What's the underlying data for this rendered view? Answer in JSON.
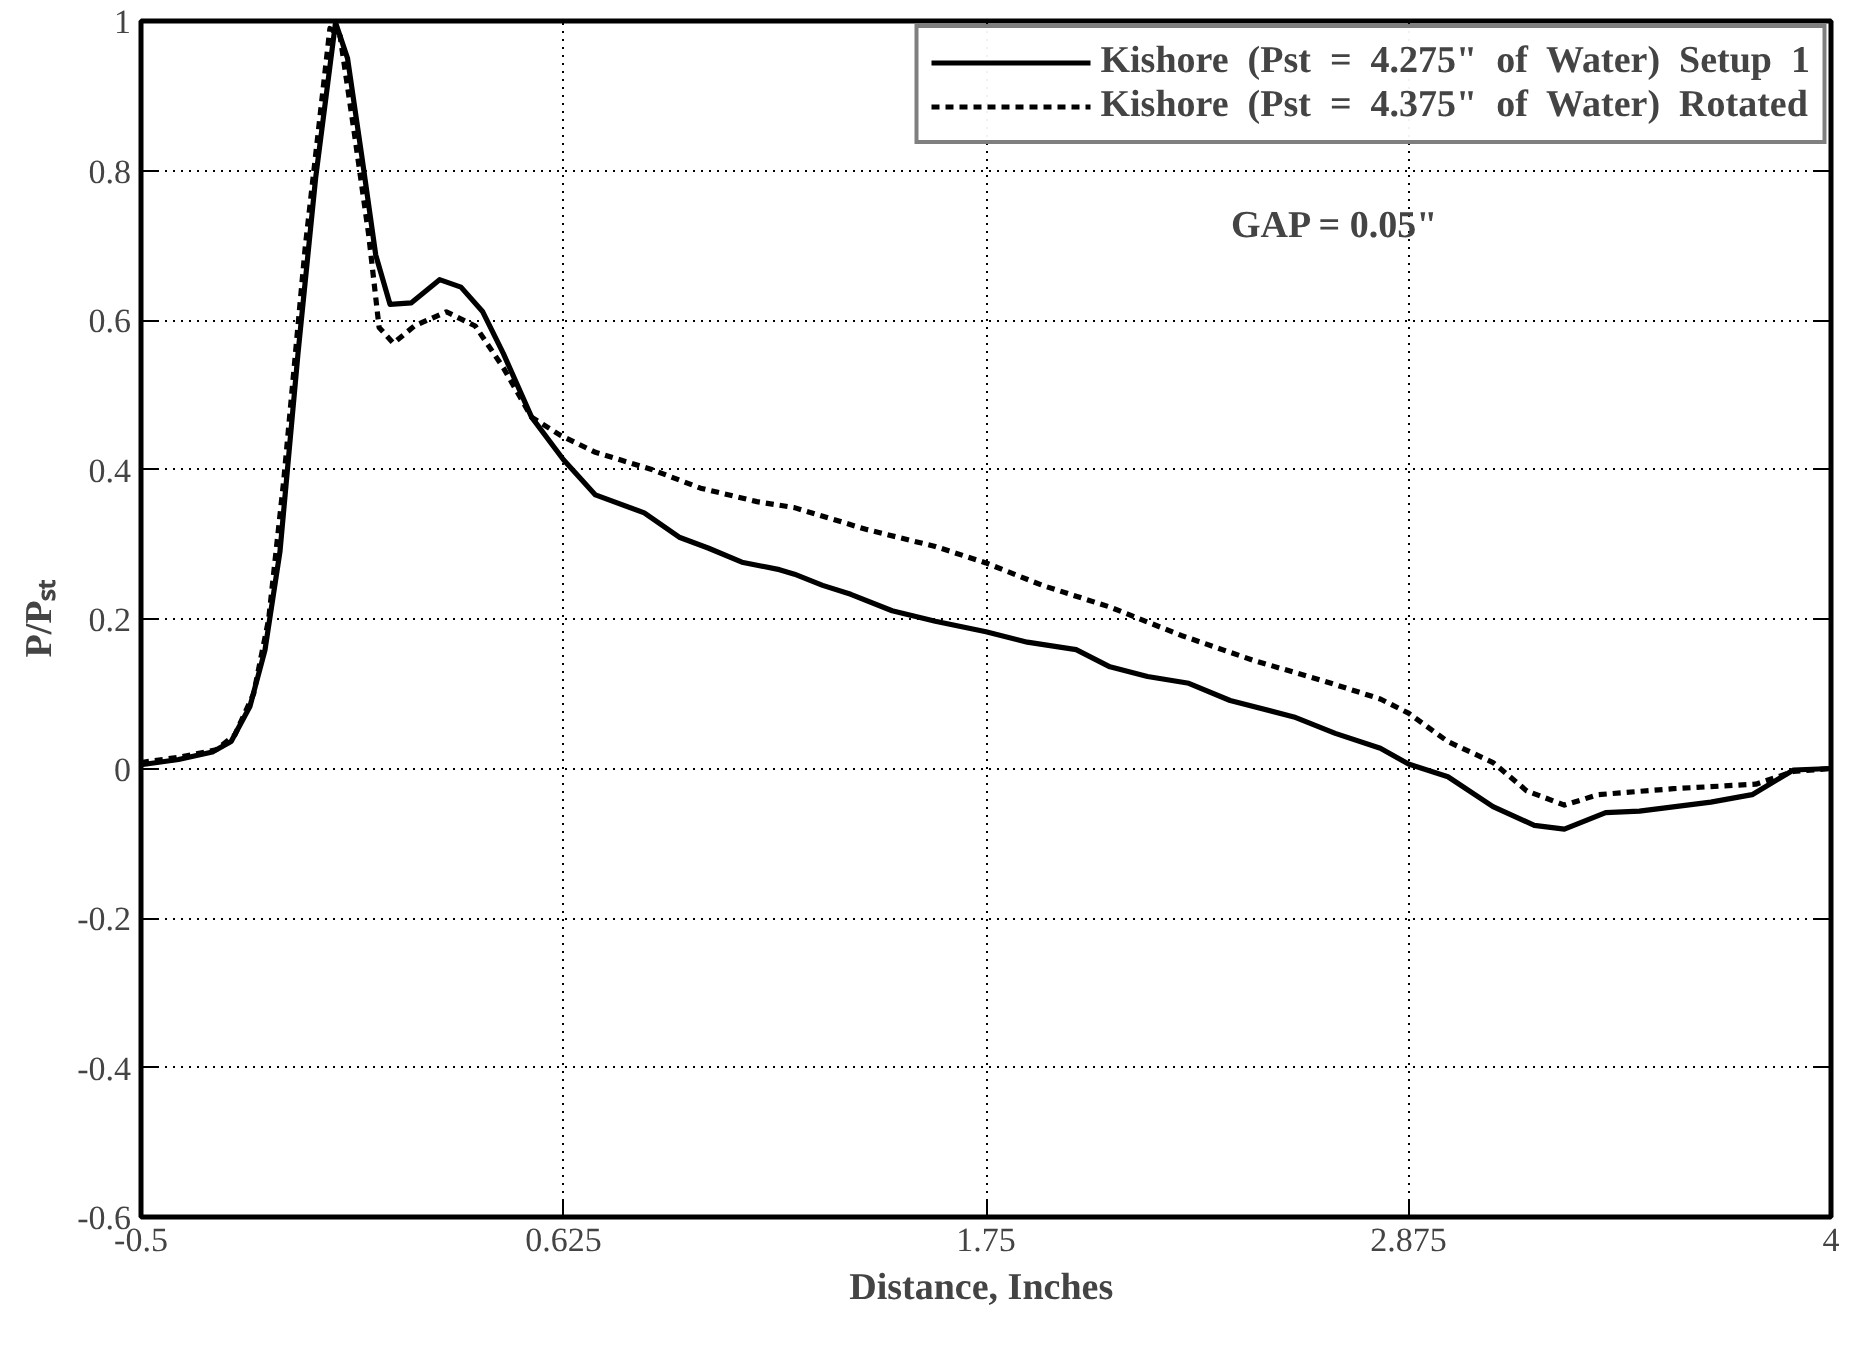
{
  "chart_data": {
    "type": "line",
    "xlabel": "Distance,  Inches",
    "ylabel": "P/Pₛₜ",
    "annotations": [
      "GAP  =  0.05\""
    ],
    "xlim": [
      -0.5,
      4
    ],
    "ylim": [
      -0.6,
      1
    ],
    "xticks": [
      -0.5,
      0.625,
      1.75,
      2.875,
      4
    ],
    "yticks": [
      -0.6,
      -0.4,
      -0.2,
      0,
      0.2,
      0.4,
      0.6,
      0.8,
      1
    ],
    "grid": true,
    "legend": "top right",
    "series": [
      {
        "name": "Kishore  (Pst  =  4.275\"  of  Water)  Setup  1",
        "color": "#000000",
        "line_style": "solid",
        "x": [
          -0.5,
          -0.4,
          -0.31,
          -0.26,
          -0.21,
          -0.17,
          -0.13,
          -0.082,
          -0.035,
          0.018,
          0.05,
          0.088,
          0.125,
          0.163,
          0.22,
          0.295,
          0.352,
          0.41,
          0.465,
          0.54,
          0.625,
          0.71,
          0.84,
          0.935,
          1.01,
          1.1,
          1.2,
          1.24,
          1.315,
          1.39,
          1.5,
          1.615,
          1.75,
          1.86,
          1.99,
          2.08,
          2.18,
          2.29,
          2.4,
          2.57,
          2.68,
          2.8,
          2.875,
          2.98,
          3.1,
          3.21,
          3.29,
          3.4,
          3.49,
          3.68,
          3.79,
          3.9,
          4.0
        ],
        "values": [
          0.005,
          0.012,
          0.022,
          0.036,
          0.083,
          0.158,
          0.29,
          0.555,
          0.79,
          0.998,
          0.95,
          0.819,
          0.687,
          0.621,
          0.623,
          0.654,
          0.644,
          0.611,
          0.555,
          0.47,
          0.413,
          0.366,
          0.342,
          0.309,
          0.295,
          0.276,
          0.266,
          0.26,
          0.245,
          0.233,
          0.211,
          0.197,
          0.183,
          0.169,
          0.159,
          0.136,
          0.123,
          0.114,
          0.091,
          0.069,
          0.047,
          0.027,
          0.006,
          -0.011,
          -0.051,
          -0.076,
          -0.081,
          -0.059,
          -0.057,
          -0.045,
          -0.035,
          -0.002,
          0
        ]
      },
      {
        "name": "Kishore  (Pst  =  4.375\"  of  Water)  Rotated",
        "color": "#000000",
        "line_style": "dashed",
        "x": [
          -0.5,
          -0.4,
          -0.3,
          -0.25,
          -0.2,
          -0.16,
          -0.12,
          -0.063,
          0.003,
          0.03,
          0.068,
          0.106,
          0.134,
          0.172,
          0.228,
          0.313,
          0.39,
          0.465,
          0.54,
          0.616,
          0.71,
          0.86,
          0.99,
          1.14,
          1.24,
          1.43,
          1.615,
          1.75,
          1.9,
          2.08,
          2.27,
          2.46,
          2.65,
          2.8,
          2.875,
          2.98,
          3.1,
          3.19,
          3.29,
          3.38,
          3.58,
          3.8,
          3.9,
          4.0
        ],
        "values": [
          0.008,
          0.015,
          0.025,
          0.045,
          0.1,
          0.2,
          0.385,
          0.696,
          0.99,
          0.98,
          0.85,
          0.715,
          0.59,
          0.569,
          0.592,
          0.611,
          0.592,
          0.536,
          0.47,
          0.446,
          0.423,
          0.4,
          0.375,
          0.357,
          0.349,
          0.32,
          0.297,
          0.275,
          0.245,
          0.216,
          0.178,
          0.145,
          0.117,
          0.093,
          0.074,
          0.036,
          0.008,
          -0.03,
          -0.049,
          -0.035,
          -0.027,
          -0.021,
          -0.004,
          0
        ]
      }
    ]
  }
}
